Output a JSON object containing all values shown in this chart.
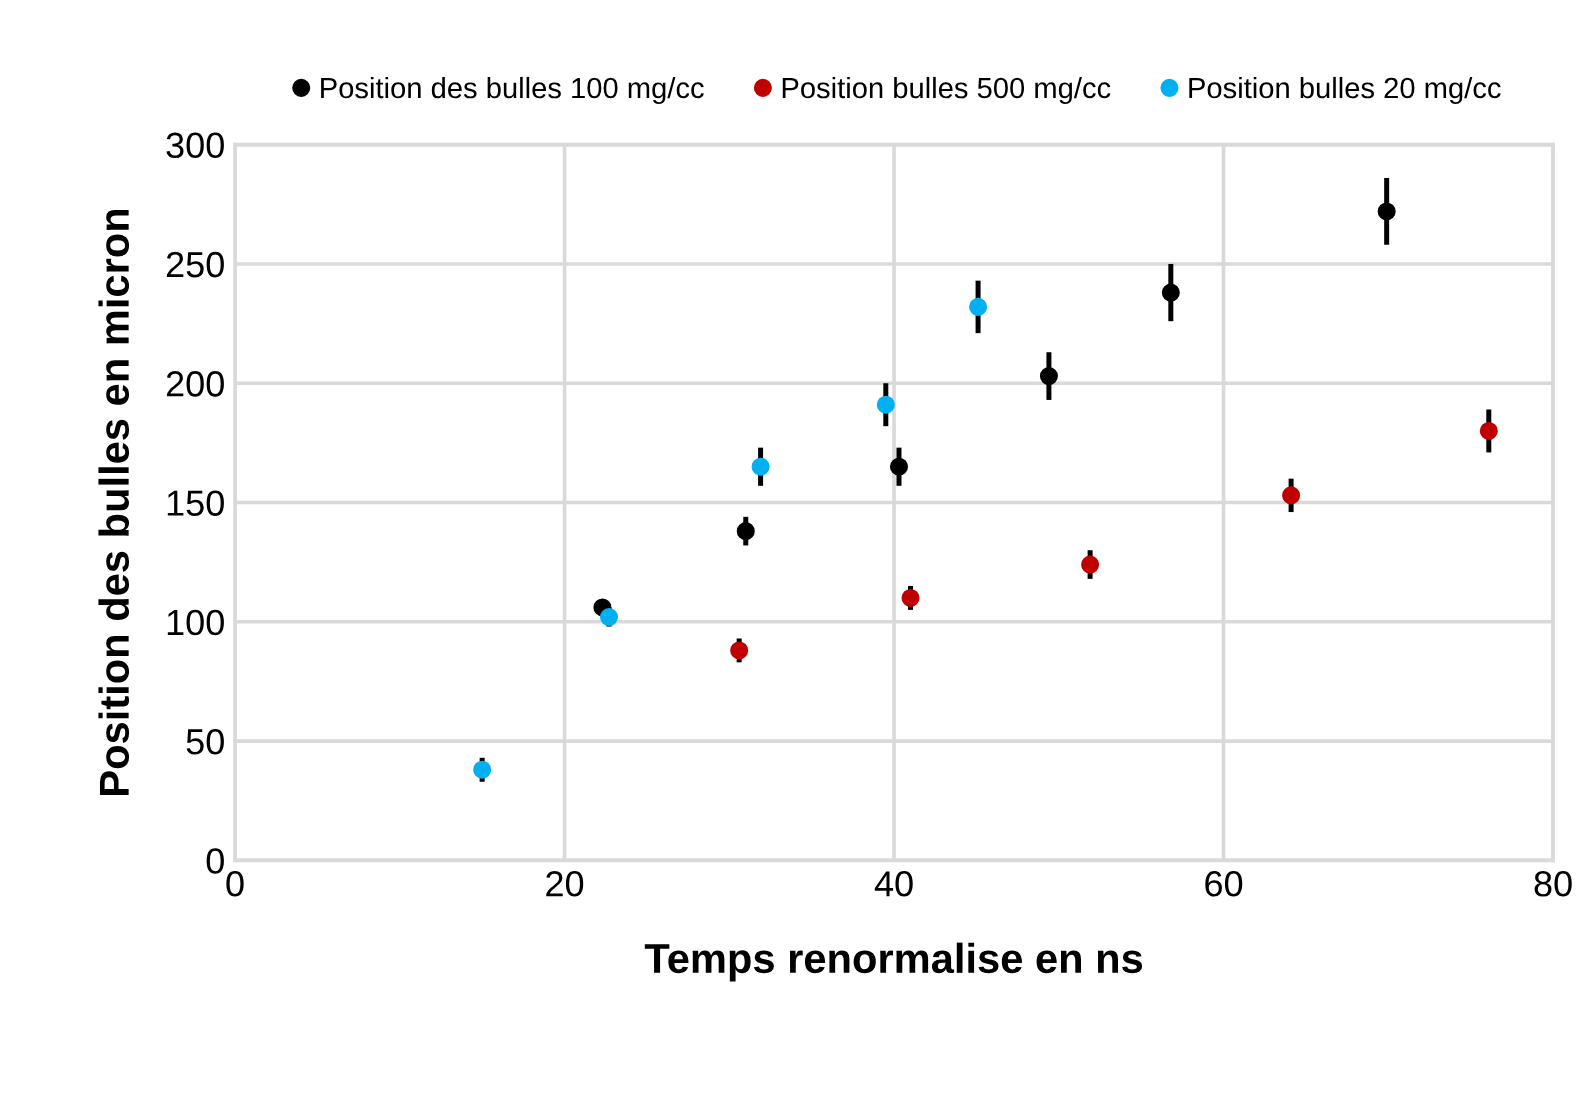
{
  "chart_data": {
    "type": "scatter",
    "xlabel": "Temps renormalise en ns",
    "ylabel": "Position des bulles en micron",
    "xlim": [
      0,
      80
    ],
    "xticks": [
      0,
      20,
      40,
      60,
      80
    ],
    "ylim": [
      0,
      300
    ],
    "yticks": [
      0,
      50,
      100,
      150,
      200,
      250,
      300
    ],
    "grid": true,
    "legend": "top",
    "marker": "circle",
    "series": [
      {
        "name": "Position des bulles 100 mg/cc",
        "color": "#000000",
        "x": [
          22.3,
          31.0,
          40.3,
          49.4,
          56.8,
          69.9
        ],
        "values": [
          106,
          138,
          165,
          203,
          238,
          272
        ],
        "errors": [
          3,
          6,
          8,
          10,
          12,
          14
        ]
      },
      {
        "name": "Position bulles 500 mg/cc",
        "color": "#c00000",
        "x": [
          30.6,
          41.0,
          51.9,
          64.1,
          76.1
        ],
        "values": [
          88,
          110,
          124,
          153,
          180
        ],
        "errors": [
          5,
          5,
          6,
          7,
          9
        ]
      },
      {
        "name": "Position bulles 20 mg/cc",
        "color": "#00b0f0",
        "x": [
          15.0,
          22.7,
          31.9,
          39.5,
          45.1
        ],
        "values": [
          38,
          102,
          165,
          191,
          232
        ],
        "errors": [
          5,
          4,
          8,
          9,
          11
        ]
      }
    ]
  }
}
